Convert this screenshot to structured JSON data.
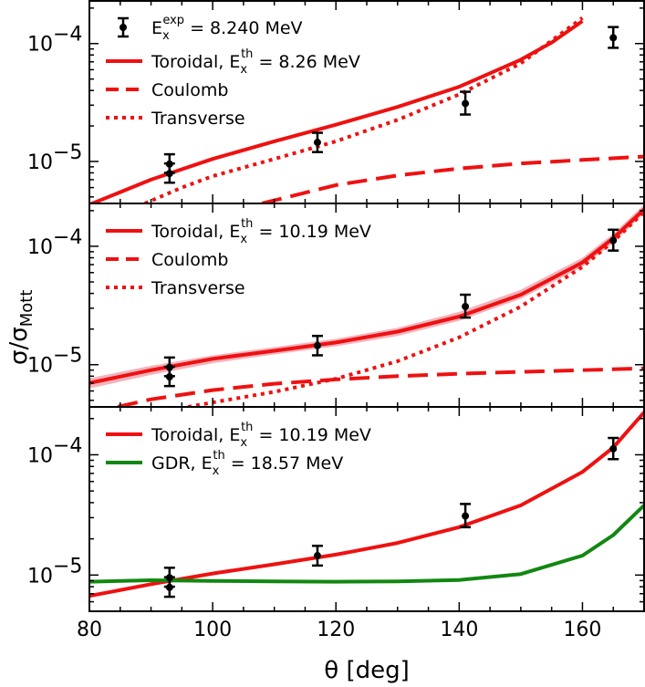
{
  "chart_data": {
    "type": "line",
    "xlabel": "θ [deg]",
    "ylabel": "σ/σMott",
    "ylabel_main": "σ/σ",
    "ylabel_sub": "Mott",
    "xlim": [
      80,
      170
    ],
    "xticks": [
      80,
      100,
      120,
      140,
      160
    ],
    "xtick_labels": [
      "80",
      "100",
      "120",
      "140",
      "160"
    ],
    "yscale": "log",
    "ytick_labels": [
      "10",
      "10"
    ],
    "ytick_exponents": [
      "−5",
      "−4"
    ],
    "colors": {
      "red": "#ee1111",
      "green": "#118811",
      "band": "#f2a6b0",
      "data": "#000000"
    },
    "experiment": {
      "label_main": "E",
      "label_sub": "x",
      "label_sup": "exp",
      "label_value": " = 8.240 MeV",
      "points": [
        {
          "x": 93,
          "y": 9.5e-06,
          "yerr_low": 8e-06,
          "yerr_high": 1.15e-05
        },
        {
          "x": 93,
          "y": 7.9e-06,
          "yerr_low": 6.6e-06,
          "yerr_high": 9.6e-06
        },
        {
          "x": 117,
          "y": 1.45e-05,
          "yerr_low": 1.2e-05,
          "yerr_high": 1.75e-05
        },
        {
          "x": 141,
          "y": 3.1e-05,
          "yerr_low": 2.5e-05,
          "yerr_high": 3.9e-05
        },
        {
          "x": 165,
          "y": 0.000112,
          "yerr_low": 9.2e-05,
          "yerr_high": 0.000138
        }
      ]
    },
    "panels": [
      {
        "ylim": [
          4.4e-06,
          0.00023
        ],
        "legend_position": "upper-left",
        "show_data_legend": true,
        "band": null,
        "series": [
          {
            "name": "Toroidal",
            "label_prefix": "Toroidal, E",
            "label_sub": "x",
            "label_sup": "th",
            "label_value": " = 8.26 MeV",
            "style": "solid",
            "color": "#ee1111",
            "x": [
              80,
              90,
              100,
              110,
              120,
              130,
              140,
              150,
              155,
              160
            ],
            "y": [
              4.3e-06,
              7e-06,
              1.05e-05,
              1.48e-05,
              2.05e-05,
              2.9e-05,
              4.3e-05,
              7.3e-05,
              0.000102,
              0.000155
            ]
          },
          {
            "name": "Coulomb",
            "label_prefix": "Coulomb",
            "label_sub": "",
            "label_sup": "",
            "label_value": "",
            "style": "dashed",
            "color": "#ee1111",
            "x": [
              108,
              120,
              130,
              140,
              150,
              160,
              170
            ],
            "y": [
              4.4e-06,
              6.3e-06,
              7.6e-06,
              8.7e-06,
              9.6e-06,
              1.03e-05,
              1.1e-05
            ]
          },
          {
            "name": "Transverse",
            "label_prefix": "Transverse",
            "label_sub": "",
            "label_sup": "",
            "label_value": "",
            "style": "dotted",
            "color": "#ee1111",
            "x": [
              89,
              95,
              100,
              110,
              120,
              130,
              140,
              150,
              160
            ],
            "y": [
              4.4e-06,
              6e-06,
              7.5e-06,
              1.05e-05,
              1.48e-05,
              2.25e-05,
              3.7e-05,
              6.8e-05,
              0.000165
            ]
          }
        ]
      },
      {
        "ylim": [
          4.4e-06,
          0.00023
        ],
        "legend_position": "upper-left",
        "show_data_legend": false,
        "band": {
          "x": [
            80,
            90,
            100,
            110,
            120,
            130,
            140,
            150,
            160,
            165,
            170
          ],
          "low": [
            6.3e-06,
            8.2e-06,
            1.03e-05,
            1.22e-05,
            1.43e-05,
            1.75e-05,
            2.35e-05,
            3.6e-05,
            6.7e-05,
            0.000107,
            0.00019
          ],
          "high": [
            7.7e-06,
            9.8e-06,
            1.2e-05,
            1.41e-05,
            1.66e-05,
            2.05e-05,
            2.8e-05,
            4.3e-05,
            8e-05,
            0.000128,
            0.000225
          ]
        },
        "series": [
          {
            "name": "Toroidal",
            "label_prefix": "Toroidal, E",
            "label_sub": "x",
            "label_sup": "th",
            "label_value": " = 10.19 MeV",
            "style": "solid",
            "color": "#ee1111",
            "x": [
              80,
              90,
              100,
              110,
              120,
              130,
              140,
              150,
              160,
              165,
              170
            ],
            "y": [
              7e-06,
              9e-06,
              1.12e-05,
              1.31e-05,
              1.54e-05,
              1.9e-05,
              2.55e-05,
              3.9e-05,
              7.3e-05,
              0.000117,
              0.000205
            ]
          },
          {
            "name": "Coulomb",
            "label_prefix": "Coulomb",
            "label_sub": "",
            "label_sup": "",
            "label_value": "",
            "style": "dashed",
            "color": "#ee1111",
            "x": [
              80,
              90,
              100,
              110,
              120,
              130,
              140,
              150,
              160,
              170
            ],
            "y": [
              3.9e-06,
              5.1e-06,
              6.1e-06,
              6.9e-06,
              7.5e-06,
              8e-06,
              8.4e-06,
              8.7e-06,
              9e-06,
              9.3e-06
            ]
          },
          {
            "name": "Transverse",
            "label_prefix": "Transverse",
            "label_sub": "",
            "label_sup": "",
            "label_value": "",
            "style": "dotted",
            "color": "#ee1111",
            "x": [
              96,
              100,
              110,
              120,
              130,
              140,
              150,
              160,
              165,
              170
            ],
            "y": [
              4.4e-06,
              4.8e-06,
              5.9e-06,
              7.6e-06,
              1.07e-05,
              1.7e-05,
              3.1e-05,
              6.7e-05,
              0.00011,
              0.000195
            ]
          }
        ]
      },
      {
        "ylim": [
          5e-06,
          0.00025
        ],
        "legend_position": "upper-left",
        "show_data_legend": false,
        "band": null,
        "series": [
          {
            "name": "Toroidal",
            "label_prefix": "Toroidal, E",
            "label_sub": "x",
            "label_sup": "th",
            "label_value": " = 10.19 MeV",
            "style": "solid",
            "color": "#ee1111",
            "x": [
              80,
              90,
              100,
              110,
              120,
              130,
              140,
              150,
              160,
              165,
              170
            ],
            "y": [
              6.7e-06,
              8.4e-06,
              1.03e-05,
              1.23e-05,
              1.48e-05,
              1.85e-05,
              2.5e-05,
              3.8e-05,
              7.2e-05,
              0.000115,
              0.000225
            ]
          },
          {
            "name": "GDR",
            "label_prefix": "GDR, E",
            "label_sub": "x",
            "label_sup": "th",
            "label_value": " = 18.57 MeV",
            "style": "solid",
            "color": "#118811",
            "x": [
              80,
              90,
              100,
              110,
              120,
              130,
              140,
              150,
              160,
              165,
              170
            ],
            "y": [
              8.8e-06,
              9.05e-06,
              8.95e-06,
              8.85e-06,
              8.8e-06,
              8.85e-06,
              9.1e-06,
              1.02e-05,
              1.45e-05,
              2.15e-05,
              3.8e-05
            ]
          }
        ]
      }
    ]
  }
}
